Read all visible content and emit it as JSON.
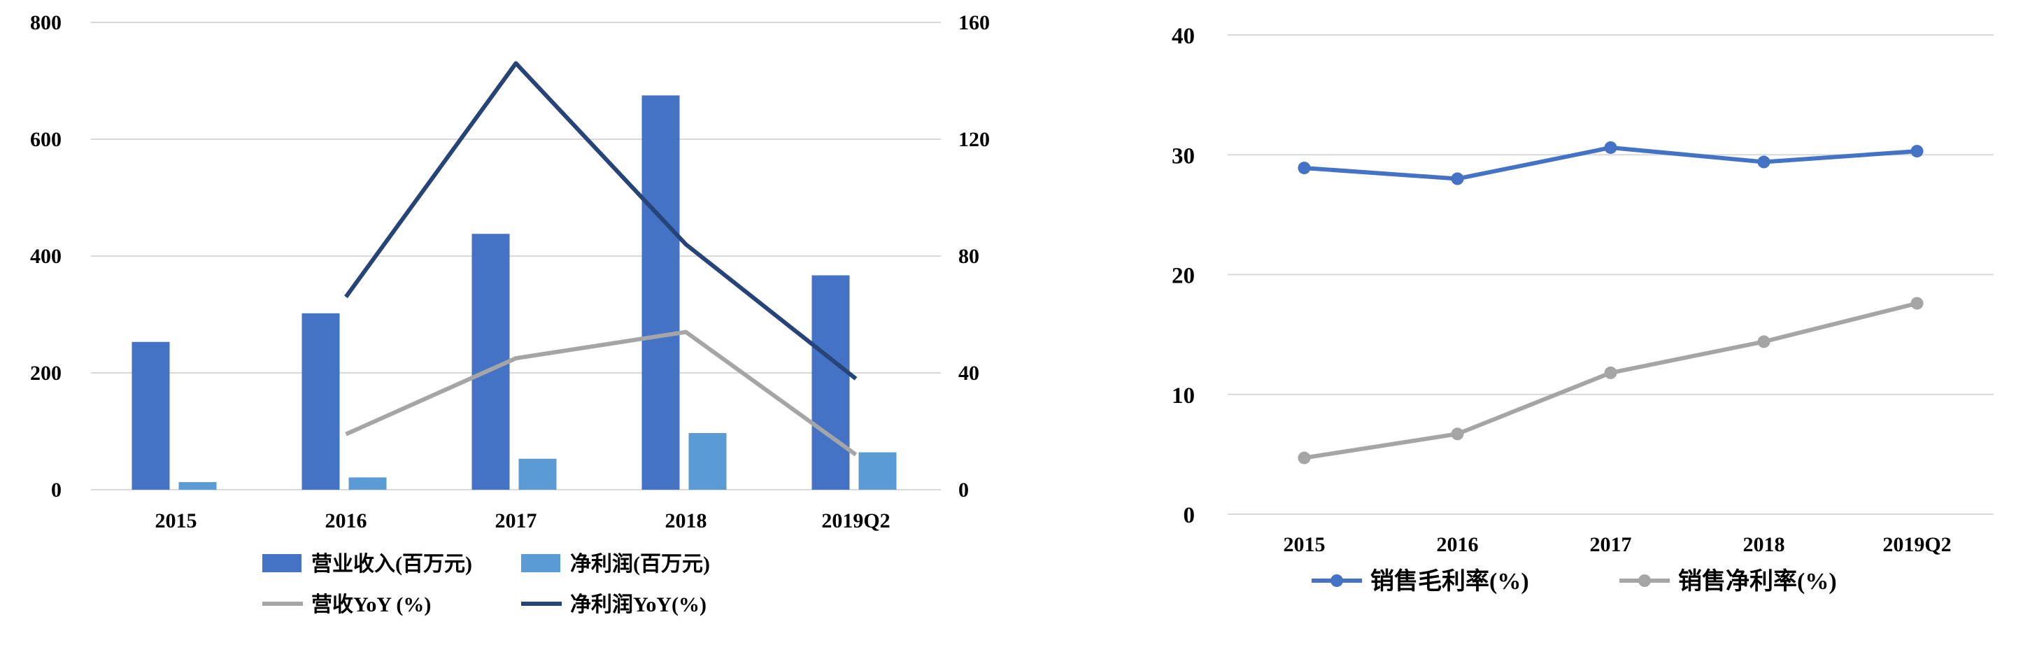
{
  "chart_data": [
    {
      "type": "bar",
      "categories": [
        "2015",
        "2016",
        "2017",
        "2018",
        "2019Q2"
      ],
      "y_left_ticks": [
        "0",
        "200",
        "400",
        "600",
        "800"
      ],
      "y_right_ticks": [
        "0",
        "40",
        "80",
        "120",
        "160"
      ],
      "ylim_left": [
        0,
        800
      ],
      "ylim_right": [
        0,
        160
      ],
      "grid": true,
      "legend_position": "bottom",
      "series": [
        {
          "name": "营业收入(百万元)",
          "kind": "bar",
          "axis": "left",
          "color": "#4472C4",
          "values": [
            253,
            302,
            438,
            675,
            367
          ]
        },
        {
          "name": "净利润(百万元)",
          "kind": "bar",
          "axis": "left",
          "color": "#5B9BD5",
          "values": [
            13,
            21,
            53,
            97,
            64
          ]
        },
        {
          "name": "营收YoY (%)",
          "kind": "line",
          "axis": "right",
          "color": "#A5A5A5",
          "values": [
            null,
            19,
            45,
            54,
            12
          ]
        },
        {
          "name": "净利润YoY(%)",
          "kind": "line",
          "axis": "right",
          "color": "#264478",
          "values": [
            null,
            66,
            146,
            84,
            38
          ]
        }
      ]
    },
    {
      "type": "line",
      "categories": [
        "2015",
        "2016",
        "2017",
        "2018",
        "2019Q2"
      ],
      "y_ticks": [
        "0",
        "10",
        "20",
        "30",
        "40"
      ],
      "ylim": [
        0,
        40
      ],
      "grid": true,
      "legend_position": "bottom",
      "series": [
        {
          "name": "销售毛利率(%)",
          "color": "#4472C4",
          "values": [
            28.9,
            28.0,
            30.6,
            29.4,
            30.3
          ]
        },
        {
          "name": "销售净利率(%)",
          "color": "#A5A5A5",
          "values": [
            4.7,
            6.7,
            11.8,
            14.4,
            17.6
          ]
        }
      ]
    }
  ]
}
